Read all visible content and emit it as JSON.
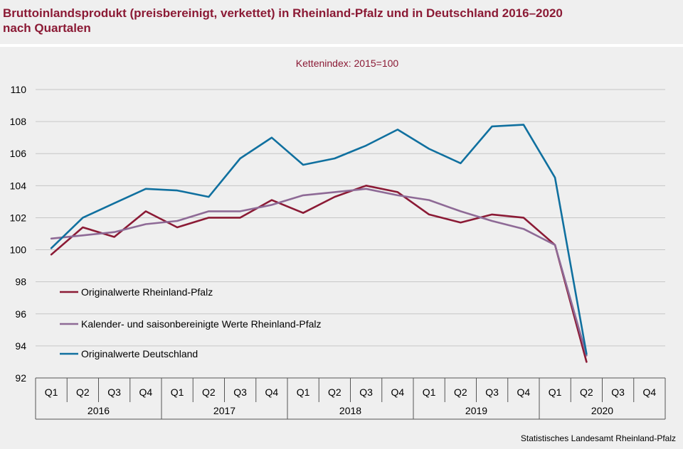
{
  "header": {
    "title_line1": "Bruttoinlandsprodukt (preisbereinigt, verkettet) in Rheinland-Pfalz und in Deutschland 2016–2020",
    "title_line2": "nach Quartalen"
  },
  "footer": {
    "source": "Statistisches Landesamt Rheinland-Pfalz"
  },
  "chart_data": {
    "type": "line",
    "subtitle": "Kettenindex:  2015=100",
    "years": [
      "2016",
      "2017",
      "2018",
      "2019",
      "2020"
    ],
    "quarters": [
      "Q1",
      "Q2",
      "Q3",
      "Q4"
    ],
    "categories": [
      "Q1 2016",
      "Q2 2016",
      "Q3 2016",
      "Q4 2016",
      "Q1 2017",
      "Q2 2017",
      "Q3 2017",
      "Q4 2017",
      "Q1 2018",
      "Q2 2018",
      "Q3 2018",
      "Q4 2018",
      "Q1 2019",
      "Q2 2019",
      "Q3 2019",
      "Q4 2019",
      "Q1 2020",
      "Q2 2020",
      "Q3 2020",
      "Q4 2020"
    ],
    "ylim": [
      92,
      110
    ],
    "yticks": [
      92,
      94,
      96,
      98,
      100,
      102,
      104,
      106,
      108,
      110
    ],
    "grid": true,
    "legend_position": "lower-left",
    "series": [
      {
        "name": "Originalwerte Rheinland-Pfalz",
        "color": "#8b1a35",
        "values": [
          99.7,
          101.4,
          100.8,
          102.4,
          101.4,
          102.0,
          102.0,
          103.1,
          102.3,
          103.3,
          104.0,
          103.6,
          102.2,
          101.7,
          102.2,
          102.0,
          100.3,
          93.0,
          null,
          null
        ]
      },
      {
        "name": "Kalender- und saisonbereinigte Werte Rheinland-Pfalz",
        "color": "#8e6a96",
        "values": [
          100.7,
          100.9,
          101.1,
          101.6,
          101.8,
          102.4,
          102.4,
          102.8,
          103.4,
          103.6,
          103.8,
          103.4,
          103.1,
          102.4,
          101.8,
          101.3,
          100.3,
          93.4,
          null,
          null
        ]
      },
      {
        "name": "Originalwerte Deutschland",
        "color": "#10709f",
        "values": [
          100.1,
          102.0,
          102.9,
          103.8,
          103.7,
          103.3,
          105.7,
          107.0,
          105.3,
          105.7,
          106.5,
          107.5,
          106.3,
          105.4,
          107.7,
          107.8,
          104.5,
          93.5,
          null,
          null
        ]
      }
    ]
  }
}
